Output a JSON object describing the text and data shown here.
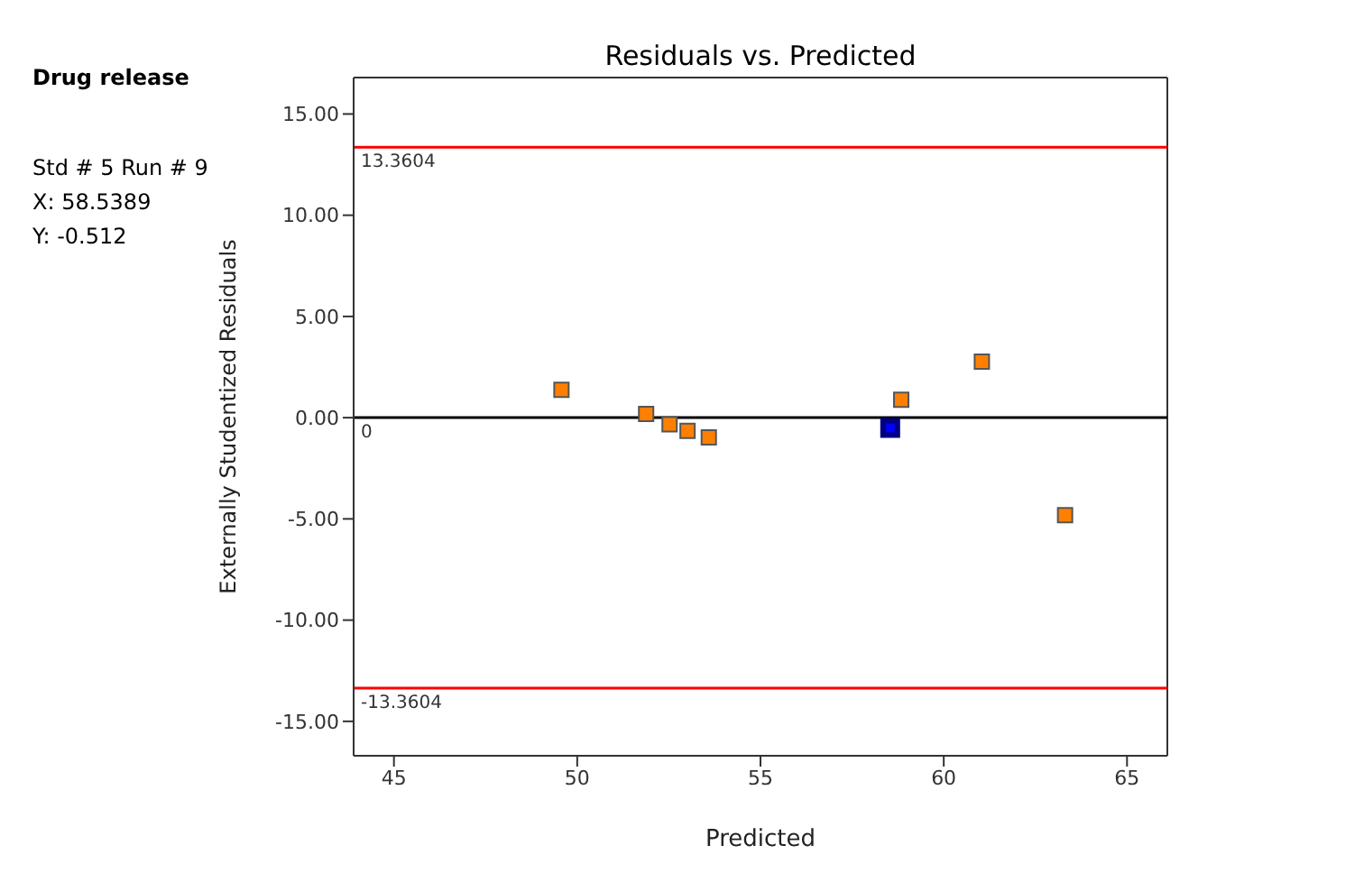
{
  "chart_data": {
    "type": "scatter",
    "title": "Residuals vs. Predicted",
    "xlabel": "Predicted",
    "ylabel": "Externally Studentized Residuals",
    "annotations": [
      "Drug release",
      "Std # 5 Run # 9",
      "X: 58.5389",
      "Y: -0.512"
    ],
    "series": [
      {
        "color": "#ff8000",
        "x": [
          49.57,
          51.88,
          52.52,
          53.01,
          53.59,
          58.84,
          61.04,
          63.31
        ],
        "values": [
          1.37,
          0.18,
          -0.33,
          -0.65,
          -0.98,
          0.89,
          2.77,
          -4.82
        ]
      },
      {
        "color": "#0000ff",
        "x": [
          58.5389
        ],
        "values": [
          -0.512
        ]
      }
    ],
    "xlim": [
      43.9,
      66.1
    ],
    "xticks": [
      45,
      50,
      55,
      60,
      65
    ],
    "ylim": [
      -16.7,
      16.8
    ],
    "yticks": [
      {
        "value": -15,
        "label": "-15.00"
      },
      {
        "value": -10,
        "label": "-10.00"
      },
      {
        "value": -5,
        "label": "-5.00"
      },
      {
        "value": 0,
        "label": "0.00"
      },
      {
        "value": 5,
        "label": "5.00"
      },
      {
        "value": 10,
        "label": "10.00"
      },
      {
        "value": 15,
        "label": "15.00"
      }
    ],
    "ref_lines": [
      {
        "axis": "y",
        "value": 13.3604,
        "label": "13.3604",
        "color": "#ff0000"
      },
      {
        "axis": "y",
        "value": 0,
        "label": "0",
        "color": "#000000"
      },
      {
        "axis": "y",
        "value": -13.3604,
        "label": "-13.3604",
        "color": "#ff0000"
      }
    ],
    "grid": false,
    "legend": false,
    "marker": "square"
  }
}
